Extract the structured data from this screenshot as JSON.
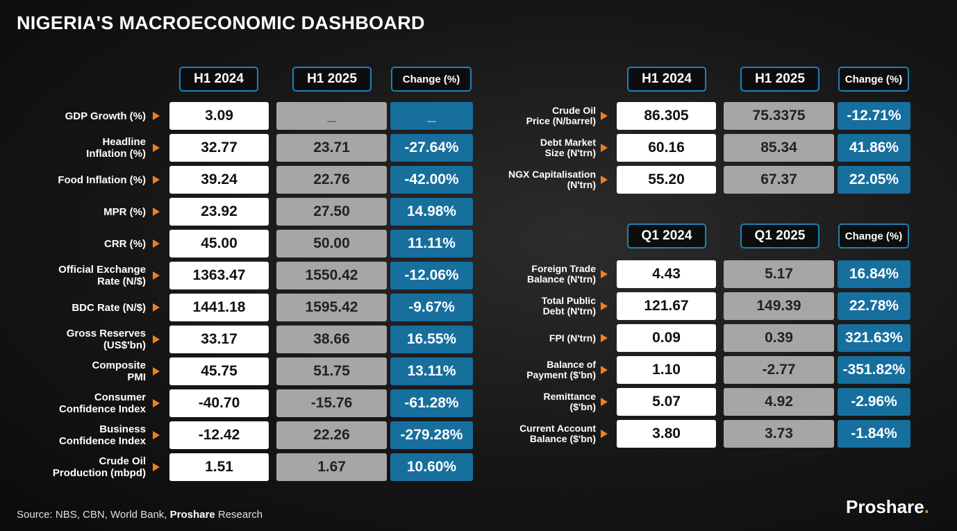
{
  "title": "NIGERIA'S MACROECONOMIC DASHBOARD",
  "left_headers": [
    "H1 2024",
    "H1 2025",
    "Change (%)"
  ],
  "left_rows": [
    {
      "label": "GDP Growth (%)",
      "h1_2024": "3.09",
      "h1_2025": "_",
      "change": "_"
    },
    {
      "label": "Headline\nInflation (%)",
      "h1_2024": "32.77",
      "h1_2025": "23.71",
      "change": "-27.64%"
    },
    {
      "label": "Food Inflation (%)",
      "h1_2024": "39.24",
      "h1_2025": "22.76",
      "change": "-42.00%"
    },
    {
      "label": "MPR (%)",
      "h1_2024": "23.92",
      "h1_2025": "27.50",
      "change": "14.98%"
    },
    {
      "label": "CRR (%)",
      "h1_2024": "45.00",
      "h1_2025": "50.00",
      "change": "11.11%"
    },
    {
      "label": "Official Exchange\nRate (N/$)",
      "h1_2024": "1363.47",
      "h1_2025": "1550.42",
      "change": "-12.06%"
    },
    {
      "label": "BDC Rate (N/$)",
      "h1_2024": "1441.18",
      "h1_2025": "1595.42",
      "change": "-9.67%"
    },
    {
      "label": "Gross Reserves\n(US$'bn)",
      "h1_2024": "33.17",
      "h1_2025": "38.66",
      "change": "16.55%"
    },
    {
      "label": "Composite\nPMI",
      "h1_2024": "45.75",
      "h1_2025": "51.75",
      "change": "13.11%"
    },
    {
      "label": "Consumer\nConfidence Index",
      "h1_2024": "-40.70",
      "h1_2025": "-15.76",
      "change": "-61.28%"
    },
    {
      "label": "Business\nConfidence Index",
      "h1_2024": "-12.42",
      "h1_2025": "22.26",
      "change": "-279.28%"
    },
    {
      "label": "Crude Oil\nProduction (mbpd)",
      "h1_2024": "1.51",
      "h1_2025": "1.67",
      "change": "10.60%"
    }
  ],
  "right_top_headers": [
    "H1 2024",
    "H1 2025",
    "Change (%)"
  ],
  "right_top_rows": [
    {
      "label": "Crude Oil\nPrice (N/barrel)",
      "v1": "86.305",
      "v2": "75.3375",
      "change": "-12.71%"
    },
    {
      "label": "Debt Market\nSize (N'trn)",
      "v1": "60.16",
      "v2": "85.34",
      "change": "41.86%"
    },
    {
      "label": "NGX Capitalisation\n(N'trn)",
      "v1": "55.20",
      "v2": "67.37",
      "change": "22.05%"
    }
  ],
  "right_bottom_headers": [
    "Q1 2024",
    "Q1 2025",
    "Change (%)"
  ],
  "right_bottom_rows": [
    {
      "label": "Foreign Trade\nBalance (N'trn)",
      "v1": "4.43",
      "v2": "5.17",
      "change": "16.84%"
    },
    {
      "label": "Total Public\nDebt (N'trn)",
      "v1": "121.67",
      "v2": "149.39",
      "change": "22.78%"
    },
    {
      "label": "FPI (N'trn)",
      "v1": "0.09",
      "v2": "0.39",
      "change": "321.63%"
    },
    {
      "label": "Balance of\nPayment ($'bn)",
      "v1": "1.10",
      "v2": "-2.77",
      "change": "-351.82%"
    },
    {
      "label": "Remittance\n($'bn)",
      "v1": "5.07",
      "v2": "4.92",
      "change": "-2.96%"
    },
    {
      "label": "Current Account\nBalance ($'bn)",
      "v1": "3.80",
      "v2": "3.73",
      "change": "-1.84%"
    }
  ],
  "footer": {
    "prefix": "Source: NBS, CBN, World Bank, ",
    "brand": "Proshare",
    "suffix": " Research"
  },
  "logo": {
    "text": "Proshare",
    "dot": "."
  },
  "colors": {
    "accent": "#f07f22",
    "blue": "#166f9d",
    "border_blue": "#1d83b8",
    "grey": "#a6a6a6"
  }
}
